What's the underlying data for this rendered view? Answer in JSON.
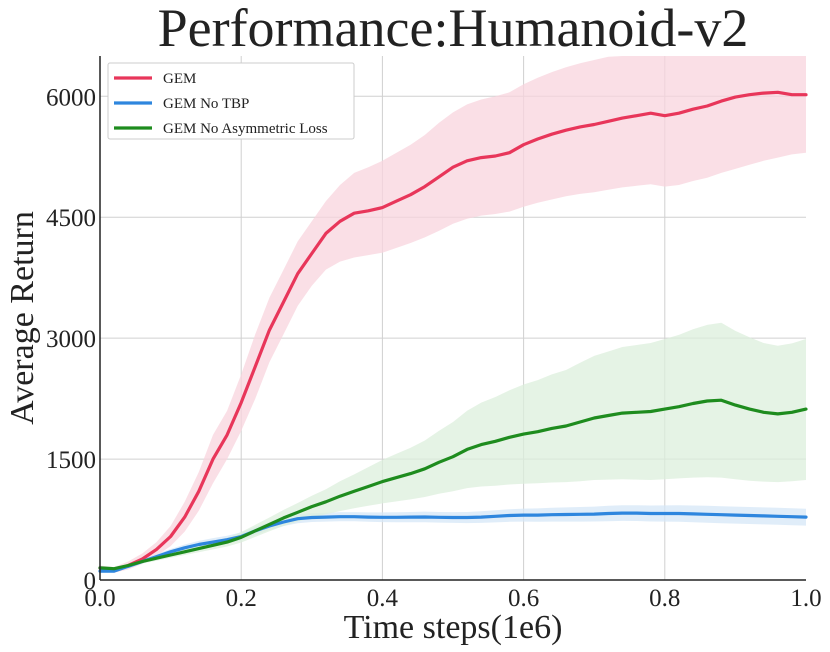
{
  "chart_data": {
    "type": "line",
    "title": "Performance:Humanoid-v2",
    "xlabel": "Time steps(1e6)",
    "ylabel": "Average Return",
    "xlim": [
      0.0,
      1.0
    ],
    "ylim": [
      0,
      6500
    ],
    "xticks": [
      "0.0",
      "0.2",
      "0.4",
      "0.6",
      "0.8",
      "1.0"
    ],
    "yticks": [
      "0",
      "1500",
      "3000",
      "4500",
      "6000"
    ],
    "grid": true,
    "legend_position": "top-left",
    "series": [
      {
        "name": "GEM",
        "color": "#e8365a",
        "band_color": "#f8d4dd",
        "x": [
          0.0,
          0.02,
          0.04,
          0.06,
          0.08,
          0.1,
          0.12,
          0.14,
          0.16,
          0.18,
          0.2,
          0.22,
          0.24,
          0.26,
          0.28,
          0.3,
          0.32,
          0.34,
          0.36,
          0.38,
          0.4,
          0.42,
          0.44,
          0.46,
          0.48,
          0.5,
          0.52,
          0.54,
          0.56,
          0.58,
          0.6,
          0.62,
          0.64,
          0.66,
          0.68,
          0.7,
          0.72,
          0.74,
          0.76,
          0.78,
          0.8,
          0.82,
          0.84,
          0.86,
          0.88,
          0.9,
          0.92,
          0.94,
          0.96,
          0.98,
          1.0
        ],
        "y": [
          150,
          120,
          180,
          260,
          380,
          540,
          780,
          1100,
          1500,
          1800,
          2200,
          2650,
          3100,
          3450,
          3800,
          4050,
          4300,
          4450,
          4550,
          4580,
          4620,
          4700,
          4780,
          4880,
          5000,
          5120,
          5200,
          5240,
          5260,
          5300,
          5400,
          5470,
          5530,
          5580,
          5620,
          5650,
          5690,
          5730,
          5760,
          5790,
          5760,
          5790,
          5840,
          5880,
          5940,
          5990,
          6020,
          6040,
          6050,
          6020,
          6020
        ],
        "lower": [
          120,
          90,
          130,
          200,
          300,
          420,
          600,
          860,
          1200,
          1500,
          1850,
          2250,
          2700,
          3050,
          3400,
          3650,
          3850,
          3950,
          4000,
          4030,
          4060,
          4120,
          4180,
          4250,
          4330,
          4420,
          4480,
          4520,
          4540,
          4570,
          4630,
          4680,
          4720,
          4760,
          4790,
          4810,
          4840,
          4870,
          4890,
          4910,
          4880,
          4900,
          4950,
          4990,
          5050,
          5100,
          5150,
          5200,
          5240,
          5280,
          5300
        ],
        "upper": [
          180,
          160,
          230,
          330,
          470,
          670,
          970,
          1340,
          1800,
          2100,
          2550,
          3050,
          3500,
          3850,
          4200,
          4450,
          4700,
          4900,
          5050,
          5120,
          5200,
          5300,
          5400,
          5520,
          5670,
          5800,
          5900,
          5960,
          6000,
          6050,
          6150,
          6230,
          6300,
          6360,
          6410,
          6450,
          6490,
          6500,
          6500,
          6500,
          6500,
          6500,
          6500,
          6500,
          6500,
          6500,
          6500,
          6500,
          6500,
          6500,
          6500
        ]
      },
      {
        "name": "GEM No TBP",
        "color": "#2e86de",
        "band_color": "#d5e7f7",
        "x": [
          0.0,
          0.02,
          0.04,
          0.06,
          0.08,
          0.1,
          0.12,
          0.14,
          0.16,
          0.18,
          0.2,
          0.22,
          0.24,
          0.26,
          0.28,
          0.3,
          0.32,
          0.34,
          0.36,
          0.38,
          0.4,
          0.42,
          0.44,
          0.46,
          0.48,
          0.5,
          0.52,
          0.54,
          0.56,
          0.58,
          0.6,
          0.62,
          0.64,
          0.66,
          0.68,
          0.7,
          0.72,
          0.74,
          0.76,
          0.78,
          0.8,
          0.82,
          0.84,
          0.86,
          0.88,
          0.9,
          0.92,
          0.94,
          0.96,
          0.98,
          1.0
        ],
        "y": [
          110,
          110,
          170,
          230,
          290,
          350,
          400,
          440,
          470,
          500,
          540,
          610,
          670,
          720,
          760,
          775,
          780,
          785,
          785,
          780,
          778,
          778,
          780,
          782,
          778,
          775,
          775,
          780,
          790,
          800,
          805,
          805,
          810,
          812,
          815,
          818,
          825,
          830,
          830,
          825,
          825,
          825,
          820,
          815,
          810,
          805,
          800,
          795,
          790,
          785,
          780
        ],
        "lower": [
          90,
          90,
          150,
          205,
          260,
          315,
          360,
          395,
          420,
          450,
          490,
          560,
          620,
          670,
          705,
          720,
          725,
          728,
          728,
          722,
          718,
          716,
          716,
          716,
          712,
          708,
          706,
          708,
          715,
          722,
          724,
          722,
          724,
          724,
          725,
          726,
          730,
          733,
          732,
          726,
          724,
          722,
          716,
          710,
          705,
          700,
          695,
          690,
          685,
          680,
          675
        ],
        "upper": [
          130,
          130,
          190,
          255,
          320,
          385,
          440,
          485,
          520,
          550,
          590,
          660,
          720,
          770,
          815,
          830,
          835,
          842,
          842,
          838,
          838,
          840,
          844,
          848,
          844,
          842,
          844,
          852,
          865,
          878,
          886,
          888,
          896,
          900,
          905,
          910,
          920,
          927,
          928,
          924,
          926,
          928,
          924,
          920,
          915,
          910,
          905,
          900,
          895,
          890,
          885
        ]
      },
      {
        "name": "GEM No Asymmetric Loss",
        "color": "#1e8c1e",
        "band_color": "#dcefdc",
        "x": [
          0.0,
          0.02,
          0.04,
          0.06,
          0.08,
          0.1,
          0.12,
          0.14,
          0.16,
          0.18,
          0.2,
          0.22,
          0.24,
          0.26,
          0.28,
          0.3,
          0.32,
          0.34,
          0.36,
          0.38,
          0.4,
          0.42,
          0.44,
          0.46,
          0.48,
          0.5,
          0.52,
          0.54,
          0.56,
          0.58,
          0.6,
          0.62,
          0.64,
          0.66,
          0.68,
          0.7,
          0.72,
          0.74,
          0.76,
          0.78,
          0.8,
          0.82,
          0.84,
          0.86,
          0.88,
          0.9,
          0.92,
          0.94,
          0.96,
          0.98,
          1.0
        ],
        "y": [
          150,
          140,
          180,
          230,
          270,
          310,
          350,
          390,
          430,
          470,
          530,
          610,
          690,
          770,
          840,
          910,
          970,
          1040,
          1100,
          1160,
          1220,
          1270,
          1320,
          1380,
          1460,
          1530,
          1620,
          1680,
          1720,
          1770,
          1810,
          1840,
          1880,
          1910,
          1960,
          2010,
          2040,
          2070,
          2080,
          2090,
          2120,
          2150,
          2190,
          2220,
          2230,
          2170,
          2120,
          2080,
          2060,
          2080,
          2120
        ],
        "lower": [
          130,
          120,
          160,
          205,
          240,
          275,
          310,
          345,
          380,
          415,
          465,
          535,
          605,
          670,
          725,
          775,
          815,
          855,
          890,
          920,
          950,
          975,
          1000,
          1030,
          1070,
          1100,
          1140,
          1160,
          1170,
          1185,
          1195,
          1200,
          1210,
          1215,
          1225,
          1240,
          1245,
          1250,
          1245,
          1240,
          1250,
          1260,
          1270,
          1275,
          1270,
          1250,
          1230,
          1220,
          1215,
          1225,
          1240
        ],
        "upper": [
          170,
          160,
          200,
          255,
          300,
          345,
          390,
          435,
          480,
          525,
          595,
          685,
          775,
          870,
          955,
          1045,
          1125,
          1225,
          1310,
          1400,
          1490,
          1565,
          1640,
          1730,
          1850,
          1960,
          2100,
          2200,
          2270,
          2355,
          2425,
          2480,
          2550,
          2605,
          2695,
          2780,
          2835,
          2890,
          2915,
          2940,
          2990,
          3040,
          3110,
          3165,
          3190,
          3090,
          3010,
          2940,
          2905,
          2935,
          2990
        ]
      }
    ]
  }
}
